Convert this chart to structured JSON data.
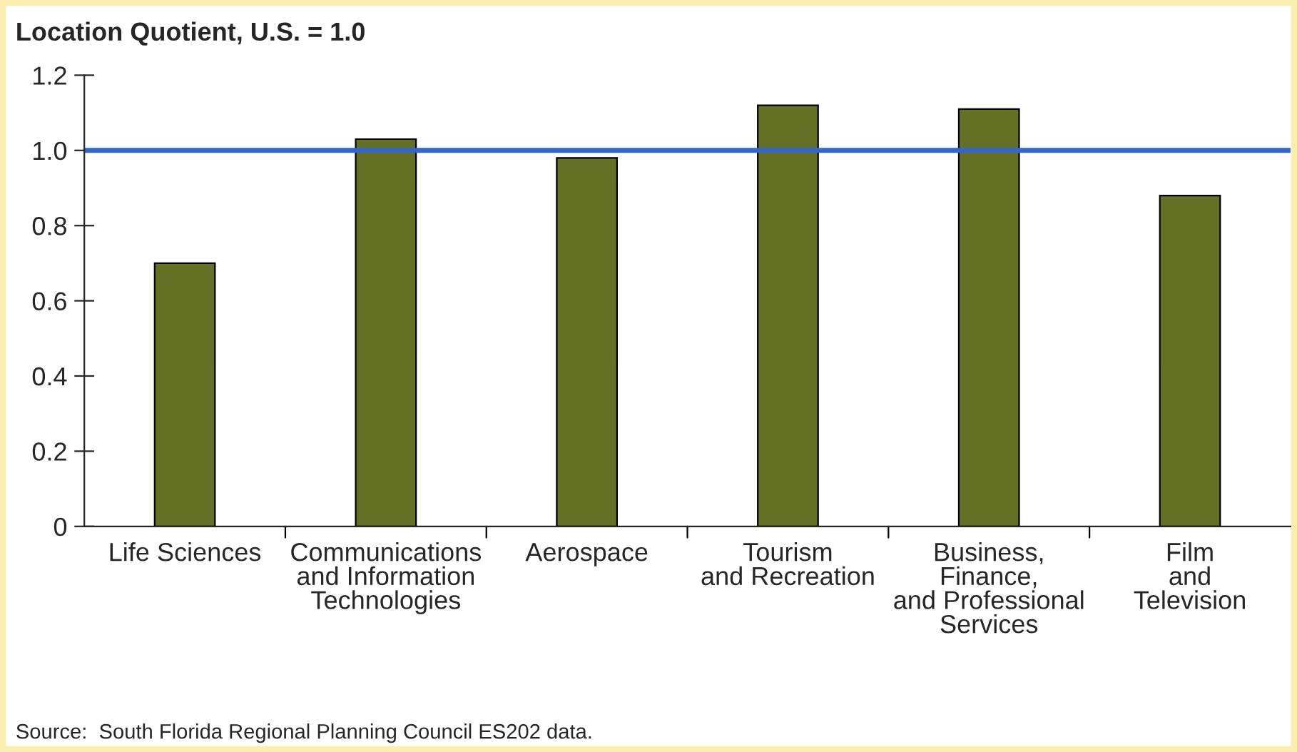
{
  "chart_data": {
    "type": "bar",
    "title": "Location Quotient, U.S. = 1.0",
    "categories": [
      "Life Sciences",
      "Communications\nand Information\nTechnologies",
      "Aerospace",
      "Tourism\nand Recreation",
      "Business,\nFinance,\nand Professional\nServices",
      "Film\nand\nTelevision"
    ],
    "values": [
      0.7,
      1.03,
      0.98,
      1.12,
      1.11,
      0.88
    ],
    "color": "#647024",
    "ylim": [
      0,
      1.2
    ],
    "yticks": [
      0,
      0.2,
      0.4,
      0.6,
      0.8,
      {
        "value": 1,
        "label": "1.0"
      },
      1.2
    ],
    "ref_lines": [
      {
        "axis": "y",
        "value": 1.0,
        "color": "#3366cc"
      }
    ],
    "annotations": [
      "Source:  South Florida Regional Planning Council ES202 data."
    ],
    "grid": false,
    "legend": false
  }
}
